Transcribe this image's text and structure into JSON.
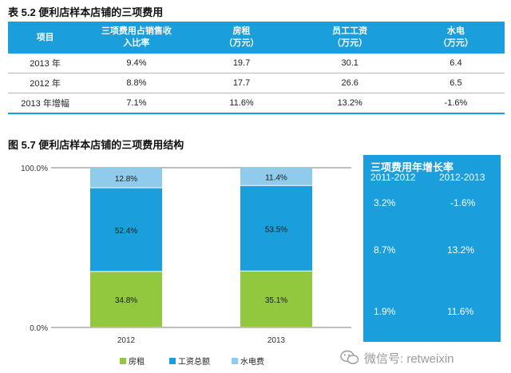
{
  "table_title": "表 5.2 便利店样本店铺的三项费用",
  "table": {
    "headers": [
      {
        "line1": "项目",
        "line2": ""
      },
      {
        "line1": "三项费用占销售收",
        "line2": "入比率"
      },
      {
        "line1": "房租",
        "line2": "（万元）"
      },
      {
        "line1": "员工工资",
        "line2": "（万元）"
      },
      {
        "line1": "水电",
        "line2": "（万元）"
      }
    ],
    "rows": [
      [
        "2013 年",
        "9.4%",
        "19.7",
        "30.1",
        "6.4"
      ],
      [
        "2012 年",
        "8.8%",
        "17.7",
        "26.6",
        "6.5"
      ],
      [
        "2013 年增幅",
        "7.1%",
        "11.6%",
        "13.2%",
        "-1.6%"
      ]
    ]
  },
  "figure_title": "图 5.7 便利店样本店铺的三项费用结构",
  "chart_data": {
    "type": "bar",
    "stacked": true,
    "normalized": true,
    "categories": [
      "2012",
      "2013"
    ],
    "series": [
      {
        "name": "房租",
        "values": [
          34.8,
          35.1
        ],
        "labels": [
          "34.8%",
          "35.1%"
        ],
        "color": "#92c83e"
      },
      {
        "name": "工资总额",
        "values": [
          52.4,
          53.5
        ],
        "labels": [
          "52.4%",
          "53.5%"
        ],
        "color": "#1a9fdc"
      },
      {
        "name": "水电费",
        "values": [
          12.8,
          11.4
        ],
        "labels": [
          "12.8%",
          "11.4%"
        ],
        "color": "#8fcbeb"
      }
    ],
    "yticks": [
      "0.0%",
      "100.0%"
    ],
    "ylim": [
      0,
      100
    ],
    "legend_position": "bottom"
  },
  "growth_panel": {
    "title": "三项费用年增长率",
    "col1": "2011-2012",
    "col2": "2012-2013",
    "rows": [
      [
        "3.2%",
        "-1.6%"
      ],
      [
        "8.7%",
        "13.2%"
      ],
      [
        "1.9%",
        "11.6%"
      ]
    ]
  },
  "watermark": "微信号: retweixin"
}
